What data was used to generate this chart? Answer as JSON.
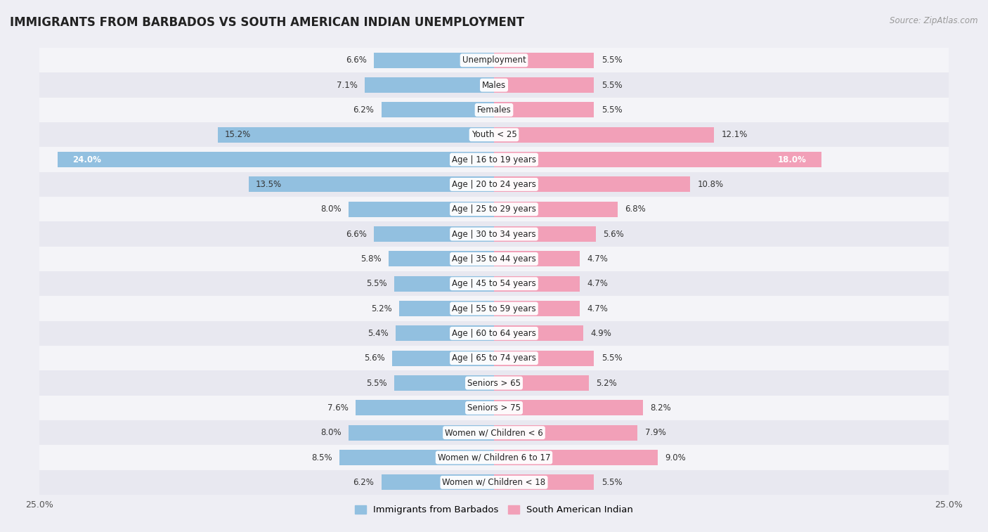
{
  "title": "IMMIGRANTS FROM BARBADOS VS SOUTH AMERICAN INDIAN UNEMPLOYMENT",
  "source": "Source: ZipAtlas.com",
  "categories": [
    "Unemployment",
    "Males",
    "Females",
    "Youth < 25",
    "Age | 16 to 19 years",
    "Age | 20 to 24 years",
    "Age | 25 to 29 years",
    "Age | 30 to 34 years",
    "Age | 35 to 44 years",
    "Age | 45 to 54 years",
    "Age | 55 to 59 years",
    "Age | 60 to 64 years",
    "Age | 65 to 74 years",
    "Seniors > 65",
    "Seniors > 75",
    "Women w/ Children < 6",
    "Women w/ Children 6 to 17",
    "Women w/ Children < 18"
  ],
  "barbados_values": [
    6.6,
    7.1,
    6.2,
    15.2,
    24.0,
    13.5,
    8.0,
    6.6,
    5.8,
    5.5,
    5.2,
    5.4,
    5.6,
    5.5,
    7.6,
    8.0,
    8.5,
    6.2
  ],
  "indian_values": [
    5.5,
    5.5,
    5.5,
    12.1,
    18.0,
    10.8,
    6.8,
    5.6,
    4.7,
    4.7,
    4.7,
    4.9,
    5.5,
    5.2,
    8.2,
    7.9,
    9.0,
    5.5
  ],
  "barbados_color": "#92c0e0",
  "indian_color": "#f2a0b8",
  "xlim": 25.0,
  "background_color": "#eeeef4",
  "row_bg_odd": "#e8e8f0",
  "row_bg_even": "#f4f4f8",
  "bar_height": 0.62,
  "label_fontsize": 8.5,
  "value_fontsize": 8.5,
  "title_fontsize": 12,
  "legend_label_barbados": "Immigrants from Barbados",
  "legend_label_indian": "South American Indian"
}
